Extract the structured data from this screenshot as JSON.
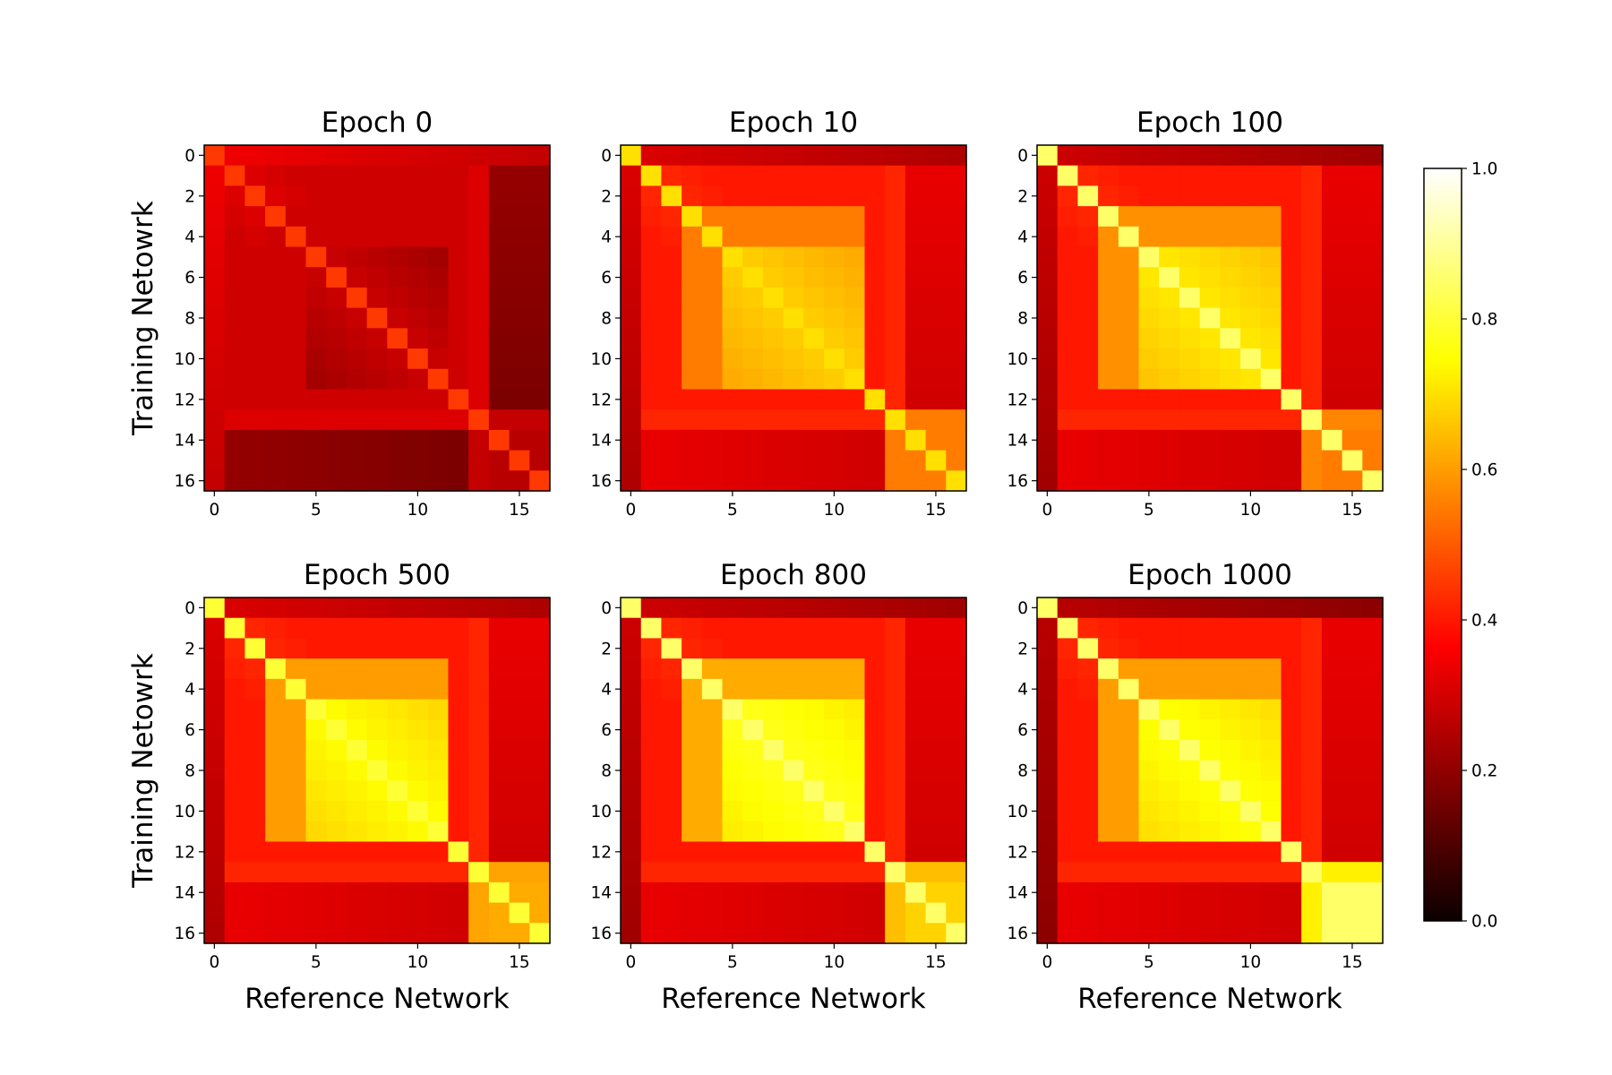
{
  "chart_data": {
    "type": "heatmap",
    "colormap": "hot",
    "colorbar": {
      "min": 0.0,
      "max": 1.0,
      "ticks": [
        "0.0",
        "0.2",
        "0.4",
        "0.6",
        "0.8",
        "1.0"
      ]
    },
    "xlabel": "Reference Network",
    "ylabel": "Training Netowrk",
    "x_ticks": [
      "0",
      "5",
      "10",
      "15"
    ],
    "y_ticks": [
      "0",
      "2",
      "4",
      "6",
      "8",
      "10",
      "12",
      "14",
      "16"
    ],
    "panels": [
      {
        "title": "Epoch 0",
        "diag": 0.45,
        "block_mid": 0.28,
        "block_inner": 0.28,
        "late_block": 0.25,
        "offdiag": 0.28,
        "edge": 0.33
      },
      {
        "title": "Epoch 10",
        "diag": 0.7,
        "block_mid": 0.55,
        "block_inner": 0.68,
        "late_block": 0.55,
        "offdiag": 0.4,
        "edge": 0.3
      },
      {
        "title": "Epoch 100",
        "diag": 0.85,
        "block_mid": 0.58,
        "block_inner": 0.72,
        "late_block": 0.55,
        "offdiag": 0.4,
        "edge": 0.28
      },
      {
        "title": "Epoch 500",
        "diag": 0.8,
        "block_mid": 0.6,
        "block_inner": 0.75,
        "late_block": 0.62,
        "offdiag": 0.4,
        "edge": 0.3
      },
      {
        "title": "Epoch 800",
        "diag": 0.85,
        "block_mid": 0.62,
        "block_inner": 0.78,
        "late_block": 0.68,
        "offdiag": 0.4,
        "edge": 0.28
      },
      {
        "title": "Epoch 1000",
        "diag": 0.85,
        "block_mid": 0.6,
        "block_inner": 0.76,
        "late_block": 0.85,
        "offdiag": 0.4,
        "edge": 0.25
      }
    ]
  }
}
